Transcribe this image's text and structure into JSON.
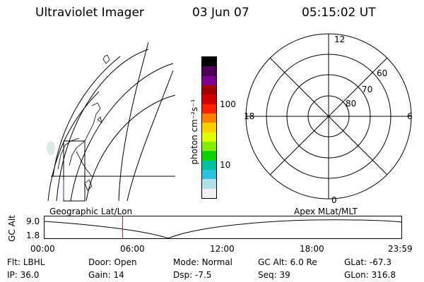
{
  "header": {
    "title": "Ultraviolet Imager",
    "date": "03 Jun 07",
    "time": "05:15:02 UT"
  },
  "geo_map": {
    "label": "Geographic Lat/Lon"
  },
  "colorbar": {
    "unit_label": "photon cm⁻²s⁻¹",
    "tick_labels": [
      "100",
      "10"
    ],
    "colors": [
      "#000000",
      "#4b0055",
      "#7b0090",
      "#a00000",
      "#d00000",
      "#ff2000",
      "#ff8000",
      "#ffd000",
      "#e0ff00",
      "#80f000",
      "#10d000",
      "#00c0a0",
      "#30c0e0",
      "#b0e0e8",
      "#f0f0f0"
    ]
  },
  "polar": {
    "label": "Apex MLat/MLT",
    "mlt_labels": {
      "top": "12",
      "left": "18",
      "right": "6",
      "bottom": "0"
    },
    "lat_labels": [
      "60",
      "70",
      "80"
    ]
  },
  "altitude_plot": {
    "y_label": "GC Alt",
    "y_ticks": [
      "9.0",
      "1.8"
    ],
    "x_ticks": [
      "00:00",
      "06:00",
      "12:00",
      "18:00",
      "23:59"
    ],
    "marker_color": "#d02020"
  },
  "status": {
    "rows": [
      [
        {
          "label": "Flt:",
          "value": "LBHL"
        },
        {
          "label": "Door:",
          "value": "Open"
        },
        {
          "label": "Mode:",
          "value": "Normal"
        },
        {
          "label": "GC Alt:",
          "value": "6.0 Re"
        },
        {
          "label": "GLat:",
          "value": "-67.3"
        }
      ],
      [
        {
          "label": "IP:",
          "value": "36.0"
        },
        {
          "label": "Gain:",
          "value": "14"
        },
        {
          "label": "Dsp:",
          "value": "-7.5"
        },
        {
          "label": "Seq:",
          "value": "39"
        },
        {
          "label": "GLon:",
          "value": "316.8"
        }
      ]
    ]
  }
}
